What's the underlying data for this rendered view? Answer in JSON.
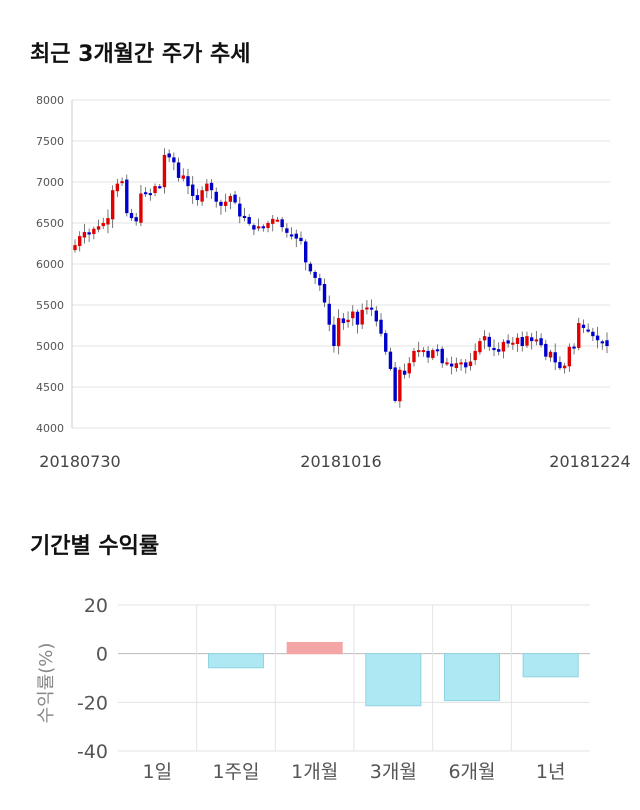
{
  "titles": {
    "price_trend": "최근 3개월간 주가 추세",
    "period_returns": "기간별 수익률"
  },
  "colors": {
    "up": "#e00000",
    "down": "#0000cc",
    "positive_bar": "#f4a6a6",
    "negative_bar": "#aee8f2",
    "negative_bar_edge": "#8fd4e0",
    "grid": "#e3e3e3"
  },
  "chart_data": [
    {
      "type": "candlestick",
      "title": "최근 3개월간 주가 추세",
      "ylim": [
        4000,
        8000
      ],
      "yticks": [
        4000,
        4500,
        5000,
        5500,
        6000,
        6500,
        7000,
        7500,
        8000
      ],
      "x_tick_labels": [
        "20180730",
        "20181016",
        "20181224"
      ],
      "grid": true,
      "closes": [
        6230,
        6340,
        6390,
        6360,
        6430,
        6460,
        6500,
        6560,
        6900,
        6980,
        7010,
        6620,
        6560,
        6520,
        6860,
        6860,
        6860,
        6950,
        6940,
        7330,
        7300,
        7240,
        7050,
        7080,
        6950,
        6830,
        6780,
        6900,
        6980,
        6900,
        6760,
        6710,
        6760,
        6830,
        6750,
        6580,
        6560,
        6490,
        6420,
        6460,
        6440,
        6500,
        6550,
        6540,
        6450,
        6380,
        6360,
        6310,
        6280,
        6020,
        5910,
        5830,
        5740,
        5530,
        5260,
        5000,
        5340,
        5280,
        5320,
        5420,
        5260,
        5440,
        5470,
        5450,
        5300,
        5150,
        4930,
        4720,
        4330,
        4710,
        4650,
        4790,
        4940,
        4950,
        4950,
        4860,
        4950,
        4950,
        4790,
        4800,
        4750,
        4790,
        4800,
        4740,
        4810,
        4940,
        5060,
        5120,
        4990,
        4950,
        4930,
        5050,
        5030,
        5040,
        5100,
        5000,
        5120,
        5060,
        5080,
        5010,
        4870,
        4930,
        4800,
        4730,
        4760,
        4990,
        4970,
        5280,
        5220,
        5190,
        5120,
        5070,
        5050,
        5000
      ]
    },
    {
      "type": "bar",
      "title": "기간별 수익률",
      "ylabel": "수익률(%)",
      "ylim": [
        -40,
        20
      ],
      "yticks": [
        20,
        0,
        -20,
        -40
      ],
      "categories": [
        "1일",
        "1주일",
        "1개월",
        "3개월",
        "6개월",
        "1년"
      ],
      "values": [
        0,
        -5.8,
        4.6,
        -21.4,
        -19.3,
        -9.5
      ],
      "grid": true
    }
  ]
}
